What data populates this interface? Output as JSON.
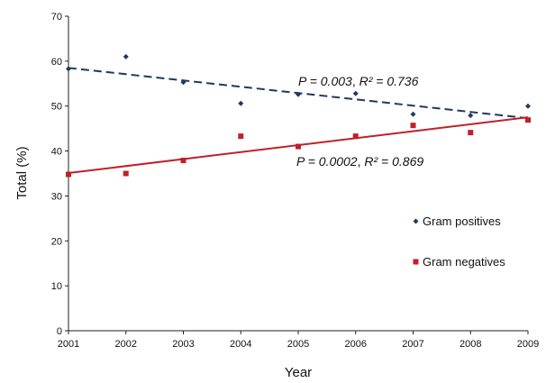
{
  "chart_data": {
    "type": "scatter",
    "xlabel": "Year",
    "ylabel": "Total (%)",
    "xlim": [
      2001,
      2009
    ],
    "ylim": [
      0,
      70
    ],
    "x_ticks": [
      "2001",
      "2002",
      "2003",
      "2004",
      "2005",
      "2006",
      "2007",
      "2008",
      "2009"
    ],
    "y_ticks": [
      "0",
      "10",
      "20",
      "30",
      "40",
      "50",
      "60",
      "70"
    ],
    "grid": false,
    "legend_position": "right",
    "x": [
      2001,
      2002,
      2003,
      2004,
      2005,
      2006,
      2007,
      2008,
      2009
    ],
    "series": [
      {
        "name": "Gram positives",
        "marker": "diamond",
        "color": "#1f3a5f",
        "values": [
          58.3,
          61.0,
          55.3,
          50.6,
          52.6,
          52.8,
          48.2,
          47.9,
          50.0
        ],
        "trend": {
          "style": "dashed",
          "start": 58.5,
          "end": 47.3,
          "p_label": "P = 0.003",
          "r2_label": "R² = 0.736"
        }
      },
      {
        "name": "Gram negatives",
        "marker": "square",
        "color": "#c0202a",
        "values": [
          34.8,
          35.0,
          37.9,
          43.3,
          41.0,
          43.3,
          45.7,
          44.1,
          46.9
        ],
        "trend": {
          "style": "solid",
          "start": 35.1,
          "end": 47.5,
          "p_label": "P = 0.0002",
          "r2_label": "R² = 0.869"
        }
      }
    ]
  }
}
